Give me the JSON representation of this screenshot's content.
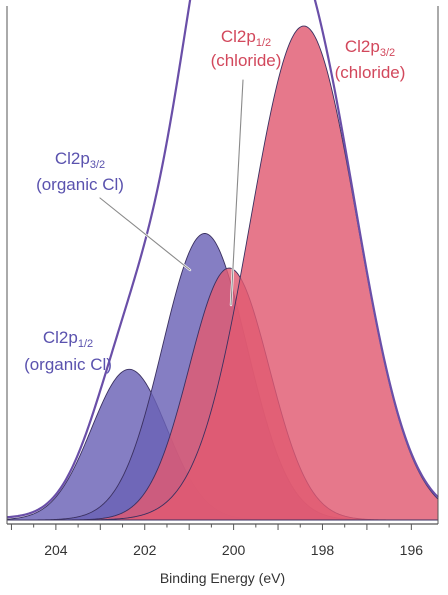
{
  "chart_data": {
    "type": "area",
    "title": "",
    "xlabel": "Binding Energy (eV)",
    "ylabel": "",
    "x_reversed": true,
    "xlim": [
      205.1,
      195.4
    ],
    "x_ticks": [
      204,
      202,
      200,
      198,
      196
    ],
    "x_tick_labels": [
      "204",
      "202",
      "200",
      "198",
      "196"
    ],
    "grid": false,
    "legend": "none",
    "series": [
      {
        "name": "Cl2p1/2 (organic Cl)",
        "type": "component",
        "center": 202.35,
        "fwhm": 0.85,
        "height": 0.305,
        "color": "#6a62b6"
      },
      {
        "name": "Cl2p3/2 (organic Cl)",
        "type": "component",
        "center": 200.65,
        "fwhm": 0.95,
        "height": 0.58,
        "color": "#6a62b6"
      },
      {
        "name": "Cl2p1/2 (chloride)",
        "type": "component",
        "center": 200.1,
        "fwhm": 0.9,
        "height": 0.51,
        "color": "#e05a72"
      },
      {
        "name": "Cl2p3/2 (chloride)",
        "type": "component",
        "center": 198.42,
        "fwhm": 1.2,
        "height": 1.0,
        "color": "#e05a72"
      },
      {
        "name": "envelope",
        "type": "envelope",
        "color": "#6a4fa8"
      }
    ],
    "annotations": [
      {
        "label_main": "Cl2p",
        "label_sub": "3/2",
        "label_line2": "(organic Cl)",
        "color": "#5a52ae"
      },
      {
        "label_main": "Cl2p",
        "label_sub": "1/2",
        "label_line2": "(chloride)",
        "color": "#d2485c"
      },
      {
        "label_main": "Cl2p",
        "label_sub": "3/2",
        "label_line2": "(chloride)",
        "color": "#d2485c"
      },
      {
        "label_main": "Cl2p",
        "label_sub": "1/2",
        "label_line2": "(organic Cl)",
        "color": "#5a52ae"
      }
    ]
  }
}
